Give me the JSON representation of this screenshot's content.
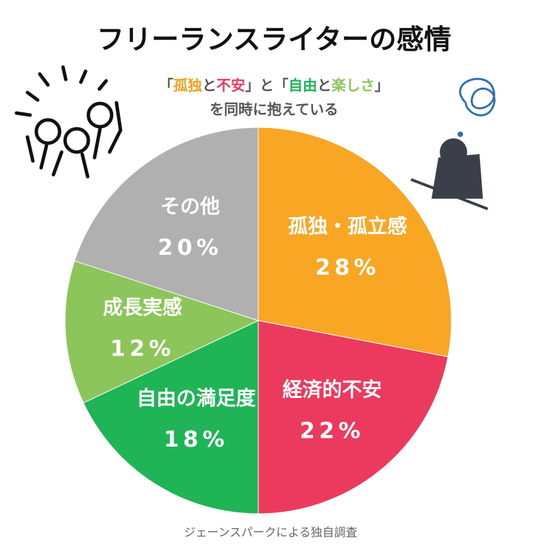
{
  "chart_data": {
    "type": "pie",
    "title": "フリーランスライターの感情",
    "subtitle_parts": [
      {
        "text": "「",
        "color": "#555555"
      },
      {
        "text": "孤独",
        "color": "#f5a020"
      },
      {
        "text": "と",
        "color": "#555555"
      },
      {
        "text": "不安",
        "color": "#ec3a5e"
      },
      {
        "text": "」と「",
        "color": "#555555"
      },
      {
        "text": "自由",
        "color": "#1fb455"
      },
      {
        "text": "と",
        "color": "#555555"
      },
      {
        "text": "楽しさ",
        "color": "#8cc65b"
      },
      {
        "text": "」",
        "color": "#555555"
      }
    ],
    "subtitle_line2": "を同時に抱えている",
    "categories": [
      "孤独・孤立感",
      "経済的不安",
      "自由の満足度",
      "成長実感",
      "その他"
    ],
    "values": [
      28,
      22,
      18,
      12,
      20
    ],
    "value_labels": [
      "28%",
      "22%",
      "18%",
      "12%",
      "20%"
    ],
    "colors": [
      "#f8a623",
      "#ec3a5e",
      "#1fb455",
      "#8cc65b",
      "#b0b0b0"
    ],
    "source": "ジェーンスパークによる独自調査"
  }
}
